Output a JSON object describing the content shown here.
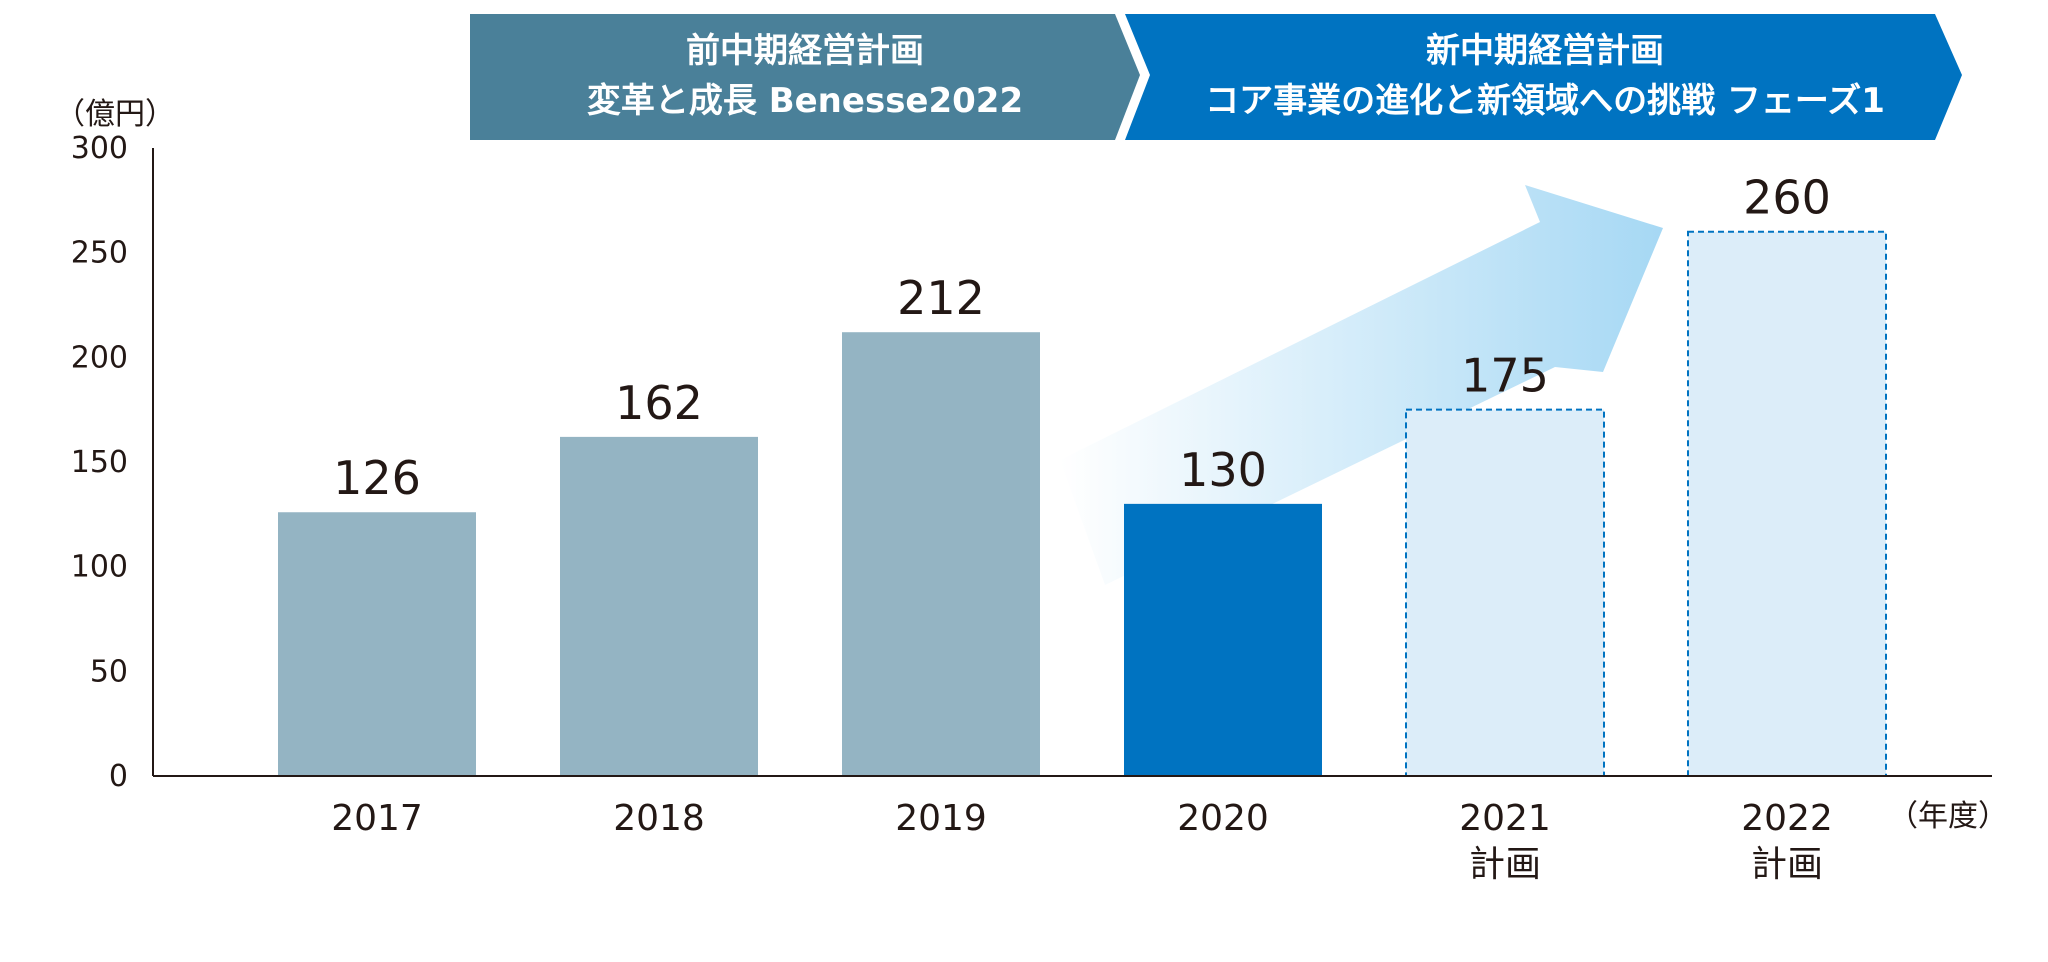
{
  "banners": [
    {
      "line1": "前中期経営計画",
      "line2": "変革と成長 Benesse2022",
      "color": "#4a8099"
    },
    {
      "line1": "新中期経営計画",
      "line2": "コア事業の進化と新領域への挑戦 フェーズ1",
      "color": "#0073c1"
    }
  ],
  "colors": {
    "past_bar": "#94b4c3",
    "current_bar": "#0073c1",
    "plan_fill": "#dcedf9",
    "plan_border": "#0073c1",
    "arrow_light": "#ffffff",
    "arrow_dark": "#a6d8f4",
    "axis": "#231815"
  },
  "chart_data": {
    "type": "bar",
    "y_unit_label": "（億円）",
    "x_unit_label": "（年度）",
    "ylim": [
      0,
      300
    ],
    "yticks": [
      "0",
      "50",
      "100",
      "150",
      "200",
      "250",
      "300"
    ],
    "categories": [
      {
        "year": "2017",
        "note": ""
      },
      {
        "year": "2018",
        "note": ""
      },
      {
        "year": "2019",
        "note": ""
      },
      {
        "year": "2020",
        "note": ""
      },
      {
        "year": "2021",
        "note": "計画"
      },
      {
        "year": "2022",
        "note": "計画"
      }
    ],
    "values": [
      126,
      162,
      212,
      130,
      175,
      260
    ],
    "value_labels": [
      "126",
      "162",
      "212",
      "130",
      "175",
      "260"
    ],
    "bar_styles": [
      "past",
      "past",
      "past",
      "current",
      "plan",
      "plan"
    ],
    "grid": false,
    "legend": "none"
  }
}
